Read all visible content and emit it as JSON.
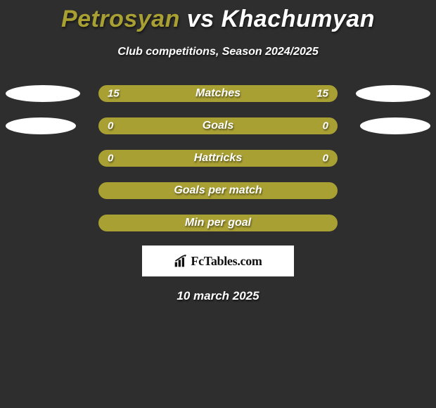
{
  "title_left": "Petrosyan",
  "title_vs": " vs ",
  "title_right": "Khachumyan",
  "title_left_color": "#a9a034",
  "title_right_color": "#ffffff",
  "subtitle": "Club competitions, Season 2024/2025",
  "rows": [
    {
      "label": "Matches",
      "left_val": "15",
      "right_val": "15",
      "left_ell_w": 106,
      "right_ell_w": 106
    },
    {
      "label": "Goals",
      "left_val": "0",
      "right_val": "0",
      "left_ell_w": 100,
      "right_ell_w": 100
    },
    {
      "label": "Hattricks",
      "left_val": "0",
      "right_val": "0",
      "left_ell_w": 0,
      "right_ell_w": 0
    },
    {
      "label": "Goals per match",
      "left_val": "",
      "right_val": "",
      "left_ell_w": 0,
      "right_ell_w": 0
    },
    {
      "label": "Min per goal",
      "left_val": "",
      "right_val": "",
      "left_ell_w": 0,
      "right_ell_w": 0
    }
  ],
  "bar_fill_color": "#a9a034",
  "bar_border_color": "#a9a034",
  "ellipse_color": "#ffffff",
  "logo_text": "FcTables.com",
  "date": "10 march 2025"
}
